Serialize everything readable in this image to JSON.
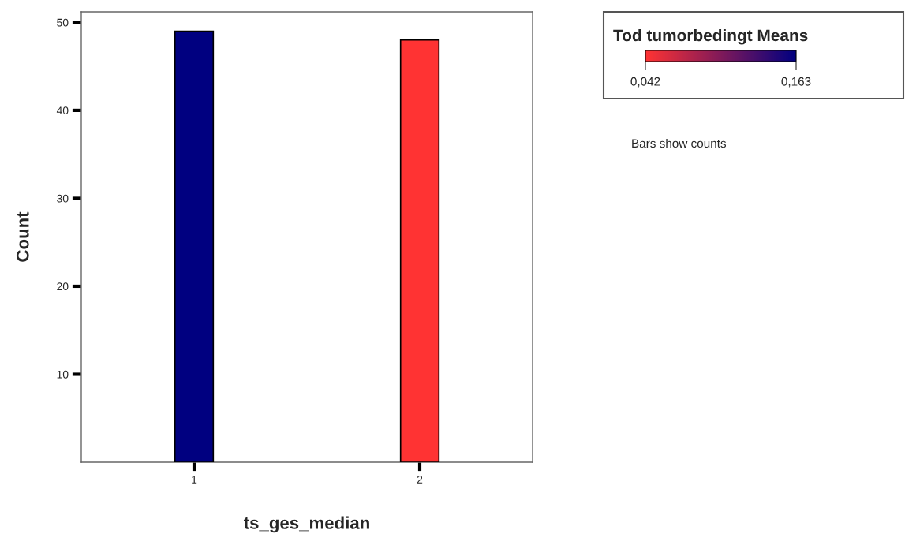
{
  "chart_data": {
    "type": "bar",
    "xlabel": "ts_ges_median",
    "ylabel": "Count",
    "categories": [
      "1",
      "2"
    ],
    "values": [
      49,
      48
    ],
    "colors": [
      "#000080",
      "#ff3333"
    ],
    "ylim": [
      0,
      51.2
    ],
    "yticks": [
      10,
      20,
      30,
      40,
      50
    ],
    "clabel": "Tod tumorbedingt Means",
    "clim": [
      0.042,
      0.163
    ],
    "cticks": [
      {
        "value": 0.042,
        "label": "0,042"
      },
      {
        "value": 0.163,
        "label": "0,163"
      }
    ],
    "annotations": [
      "Bars show counts"
    ],
    "grid": false
  }
}
